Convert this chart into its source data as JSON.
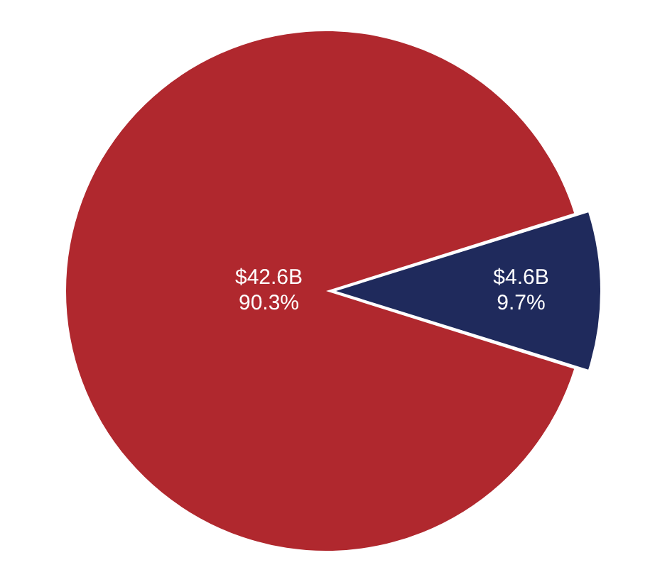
{
  "chart_data": {
    "type": "pie",
    "categories": [
      null,
      null
    ],
    "values": [
      90.3,
      9.7
    ],
    "colors": [
      "#b0282e",
      "#1f2a5c"
    ],
    "value_labels": [
      "$42.6B\n90.3%",
      "$4.6B\n9.7%"
    ],
    "legend": false
  }
}
